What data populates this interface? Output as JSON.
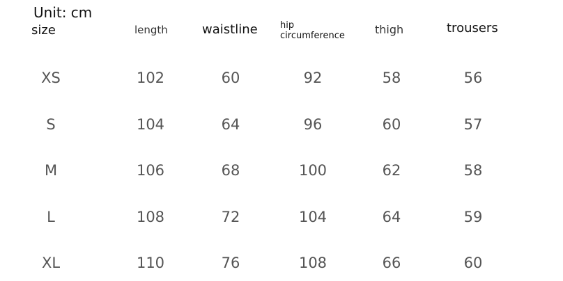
{
  "unit_label": "Unit: cm",
  "headers": {
    "size": "size",
    "length": "length",
    "waistline": "waistline",
    "hip_line1": "hip",
    "hip_line2": "circumference",
    "thigh": "thigh",
    "trousers": "trousers"
  },
  "rows": [
    [
      "XS",
      "102",
      "60",
      "92",
      "58",
      "56"
    ],
    [
      "S",
      "104",
      "64",
      "96",
      "60",
      "57"
    ],
    [
      "M",
      "106",
      "68",
      "100",
      "62",
      "58"
    ],
    [
      "L",
      "108",
      "72",
      "104",
      "64",
      "59"
    ],
    [
      "XL",
      "110",
      "76",
      "108",
      "66",
      "60"
    ]
  ]
}
